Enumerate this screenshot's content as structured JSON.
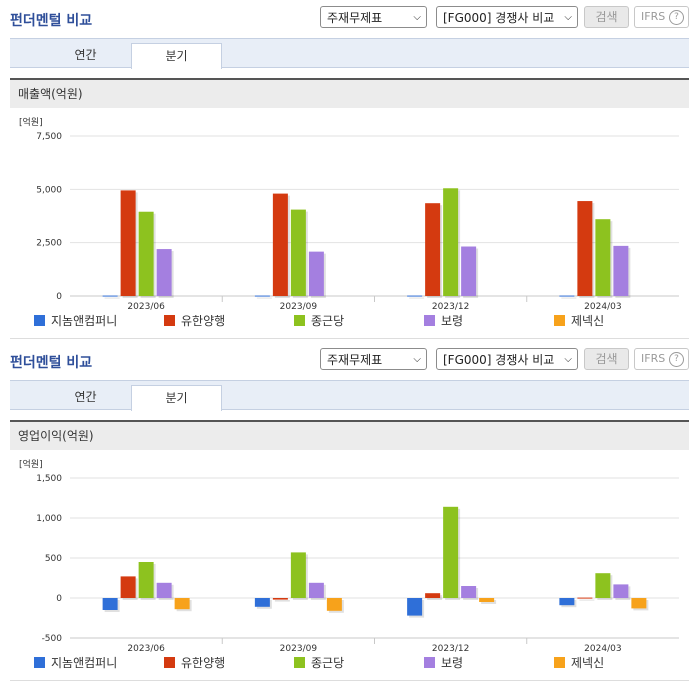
{
  "sections": [
    {
      "header": {
        "title": "펀더멘털 비교",
        "statement_select": "주재무제표",
        "peer_select": "[FG000] 경쟁사 비교",
        "search_label": "검색",
        "ifrs_label": "IFRS",
        "help_glyph": "?"
      },
      "tabs": [
        {
          "label": "연간",
          "active": false
        },
        {
          "label": "분기",
          "active": true
        }
      ],
      "subtitle": "매출액(억원)"
    },
    {
      "header": {
        "title": "펀더멘털 비교",
        "statement_select": "주재무제표",
        "peer_select": "[FG000] 경쟁사 비교",
        "search_label": "검색",
        "ifrs_label": "IFRS",
        "help_glyph": "?"
      },
      "tabs": [
        {
          "label": "연간",
          "active": false
        },
        {
          "label": "분기",
          "active": true
        }
      ],
      "subtitle": "영업이익(억원)"
    }
  ],
  "chart_data": [
    {
      "type": "bar",
      "unit_label": "[억원]",
      "categories": [
        "2023/06",
        "2023/09",
        "2023/12",
        "2024/03"
      ],
      "ylim": [
        0,
        7500
      ],
      "yticks": [
        0,
        2500,
        5000,
        7500
      ],
      "ytick_labels": [
        "0",
        "2,500",
        "5,000",
        "7,500"
      ],
      "grid": true,
      "legend_position": "bottom",
      "series": [
        {
          "name": "지놈앤컴퍼니",
          "color": "#2f6fd8",
          "values": [
            20,
            20,
            20,
            20
          ]
        },
        {
          "name": "유한양행",
          "color": "#d43a10",
          "values": [
            4950,
            4800,
            4350,
            4450
          ]
        },
        {
          "name": "종근당",
          "color": "#8dc21f",
          "values": [
            3950,
            4050,
            5050,
            3600
          ]
        },
        {
          "name": "보령",
          "color": "#a47fe0",
          "values": [
            2200,
            2080,
            2320,
            2350
          ]
        },
        {
          "name": "제넥신",
          "color": "#f7a21b",
          "values": [
            0,
            0,
            0,
            0
          ]
        }
      ]
    },
    {
      "type": "bar",
      "unit_label": "[억원]",
      "categories": [
        "2023/06",
        "2023/09",
        "2023/12",
        "2024/03"
      ],
      "ylim": [
        -500,
        1500
      ],
      "yticks": [
        -500,
        0,
        500,
        1000,
        1500
      ],
      "ytick_labels": [
        "-500",
        "0",
        "500",
        "1,000",
        "1,500"
      ],
      "grid": true,
      "legend_position": "bottom",
      "series": [
        {
          "name": "지놈앤컴퍼니",
          "color": "#2f6fd8",
          "values": [
            -150,
            -110,
            -220,
            -90
          ]
        },
        {
          "name": "유한양행",
          "color": "#d43a10",
          "values": [
            270,
            -20,
            60,
            5
          ]
        },
        {
          "name": "종근당",
          "color": "#8dc21f",
          "values": [
            450,
            570,
            1140,
            310
          ]
        },
        {
          "name": "보령",
          "color": "#a47fe0",
          "values": [
            190,
            190,
            150,
            170
          ]
        },
        {
          "name": "제넥신",
          "color": "#f7a21b",
          "values": [
            -140,
            -160,
            -50,
            -130
          ]
        }
      ]
    }
  ]
}
